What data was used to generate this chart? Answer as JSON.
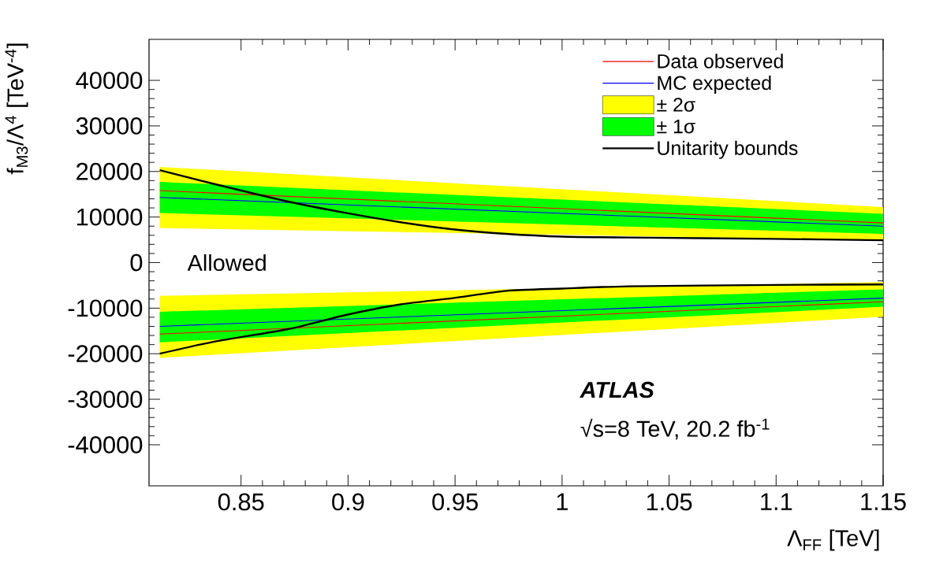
{
  "chart_data": {
    "type": "line",
    "xlabel": "Λ$_{FF}$ [TeV]",
    "ylabel": "f$_{M3}$/Λ$^{4}$ [TeV$^{-4}$]",
    "xlim": [
      0.807,
      1.15
    ],
    "ylim": [
      -49000,
      49000
    ],
    "xticks": [
      0.85,
      0.9,
      0.95,
      1,
      1.05,
      1.1,
      1.15
    ],
    "yticks": [
      -40000,
      -30000,
      -20000,
      -10000,
      0,
      10000,
      20000,
      30000,
      40000
    ],
    "grid": false,
    "legend": "top right",
    "marker": "none",
    "line_style": "solid",
    "annotations": [
      "Allowed",
      "ATLAS",
      "√s=8 TeV, 20.2 fb$^{-1}$"
    ],
    "series": [
      {
        "name": "Data observed",
        "color": "#ff0000",
        "x": [
          0.812,
          1.15
        ],
        "values": [
          15800,
          8700
        ]
      },
      {
        "color": "#ff0000",
        "x": [
          0.812,
          1.15
        ],
        "values": [
          -15700,
          -8600
        ]
      },
      {
        "name": "MC expected",
        "color": "#0000ff",
        "x": [
          0.812,
          1.15
        ],
        "values": [
          14300,
          8000
        ]
      },
      {
        "color": "#0000ff",
        "x": [
          0.812,
          1.15
        ],
        "values": [
          -14000,
          -7800
        ]
      },
      {
        "name": "± 2σ",
        "type": "area",
        "color": "#ffff00",
        "x": [
          0.812,
          1.15
        ],
        "values": [
          null,
          null
        ],
        "lower": [
          7600,
          4900
        ],
        "upper": [
          21000,
          12200
        ]
      },
      {
        "type": "area",
        "color": "#ffff00",
        "x": [
          0.812,
          1.15
        ],
        "values": [
          null,
          null
        ],
        "lower": [
          -20900,
          -11900
        ],
        "upper": [
          -7300,
          -4300
        ]
      },
      {
        "name": "± 1σ",
        "type": "area",
        "color": "#00ff00",
        "x": [
          0.812,
          1.15
        ],
        "values": [
          null,
          null
        ],
        "lower": [
          10900,
          6300
        ],
        "upper": [
          17700,
          10700
        ]
      },
      {
        "type": "area",
        "color": "#00ff00",
        "x": [
          0.812,
          1.15
        ],
        "values": [
          null,
          null
        ],
        "lower": [
          -17500,
          -9700
        ],
        "upper": [
          -10800,
          -5900
        ]
      },
      {
        "name": "Unitarity bounds",
        "color": "#000000",
        "x": [
          0.812,
          0.838,
          0.872,
          0.899,
          0.924,
          0.949,
          0.974,
          1.0,
          1.031,
          1.099,
          1.15
        ],
        "values": [
          20300,
          17200,
          13400,
          10900,
          8900,
          7300,
          6300,
          5700,
          5500,
          5200,
          4900
        ]
      },
      {
        "color": "#000000",
        "x": [
          0.812,
          0.838,
          0.872,
          0.899,
          0.924,
          0.949,
          0.974,
          1.0,
          1.031,
          1.099,
          1.15
        ],
        "values": [
          -20000,
          -17300,
          -14600,
          -11500,
          -9200,
          -7800,
          -6200,
          -5700,
          -5200,
          -4900,
          -4800
        ]
      }
    ]
  }
}
